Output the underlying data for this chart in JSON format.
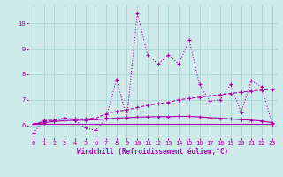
{
  "xlabel": "Windchill (Refroidissement éolien,°C)",
  "background_color": "#ceeaea",
  "grid_color": "#aad4d4",
  "line_color": "#aa00aa",
  "xlim": [
    -0.5,
    23.5
  ],
  "ylim": [
    5.5,
    10.7
  ],
  "yticks": [
    6,
    7,
    8,
    9,
    10
  ],
  "xticks": [
    0,
    1,
    2,
    3,
    4,
    5,
    6,
    7,
    8,
    9,
    10,
    11,
    12,
    13,
    14,
    15,
    16,
    17,
    18,
    19,
    20,
    21,
    22,
    23
  ],
  "series1_x": [
    0,
    1,
    2,
    3,
    4,
    5,
    6,
    7,
    8,
    9,
    10,
    11,
    12,
    13,
    14,
    15,
    16,
    17,
    18,
    19,
    20,
    21,
    22,
    23
  ],
  "series1_y": [
    5.7,
    6.2,
    6.2,
    6.3,
    6.2,
    5.9,
    5.8,
    6.3,
    7.8,
    6.3,
    10.4,
    8.75,
    8.4,
    8.75,
    8.4,
    9.35,
    7.6,
    6.95,
    7.0,
    7.6,
    6.5,
    7.75,
    7.5,
    6.05
  ],
  "series2_x": [
    0,
    1,
    2,
    3,
    4,
    5,
    6,
    7,
    8,
    9,
    10,
    11,
    12,
    13,
    14,
    15,
    16,
    17,
    18,
    19,
    20,
    21,
    22,
    23
  ],
  "series2_y": [
    6.05,
    6.15,
    6.2,
    6.25,
    6.25,
    6.25,
    6.28,
    6.45,
    6.55,
    6.6,
    6.7,
    6.78,
    6.85,
    6.9,
    7.0,
    7.05,
    7.1,
    7.15,
    7.2,
    7.25,
    7.3,
    7.35,
    7.38,
    7.42
  ],
  "series3_x": [
    0,
    1,
    2,
    3,
    4,
    5,
    6,
    7,
    8,
    9,
    10,
    11,
    12,
    13,
    14,
    15,
    16,
    17,
    18,
    19,
    20,
    21,
    22,
    23
  ],
  "series3_y": [
    6.05,
    6.1,
    6.15,
    6.18,
    6.2,
    6.2,
    6.22,
    6.25,
    6.28,
    6.3,
    6.32,
    6.33,
    6.34,
    6.34,
    6.35,
    6.35,
    6.33,
    6.3,
    6.28,
    6.25,
    6.22,
    6.2,
    6.17,
    6.1
  ],
  "series4_x": [
    0,
    23
  ],
  "series4_y": [
    6.05,
    6.05
  ],
  "markersize": 2.0,
  "linewidth": 0.8,
  "xlabel_fontsize": 5.5,
  "tick_fontsize": 5.0
}
